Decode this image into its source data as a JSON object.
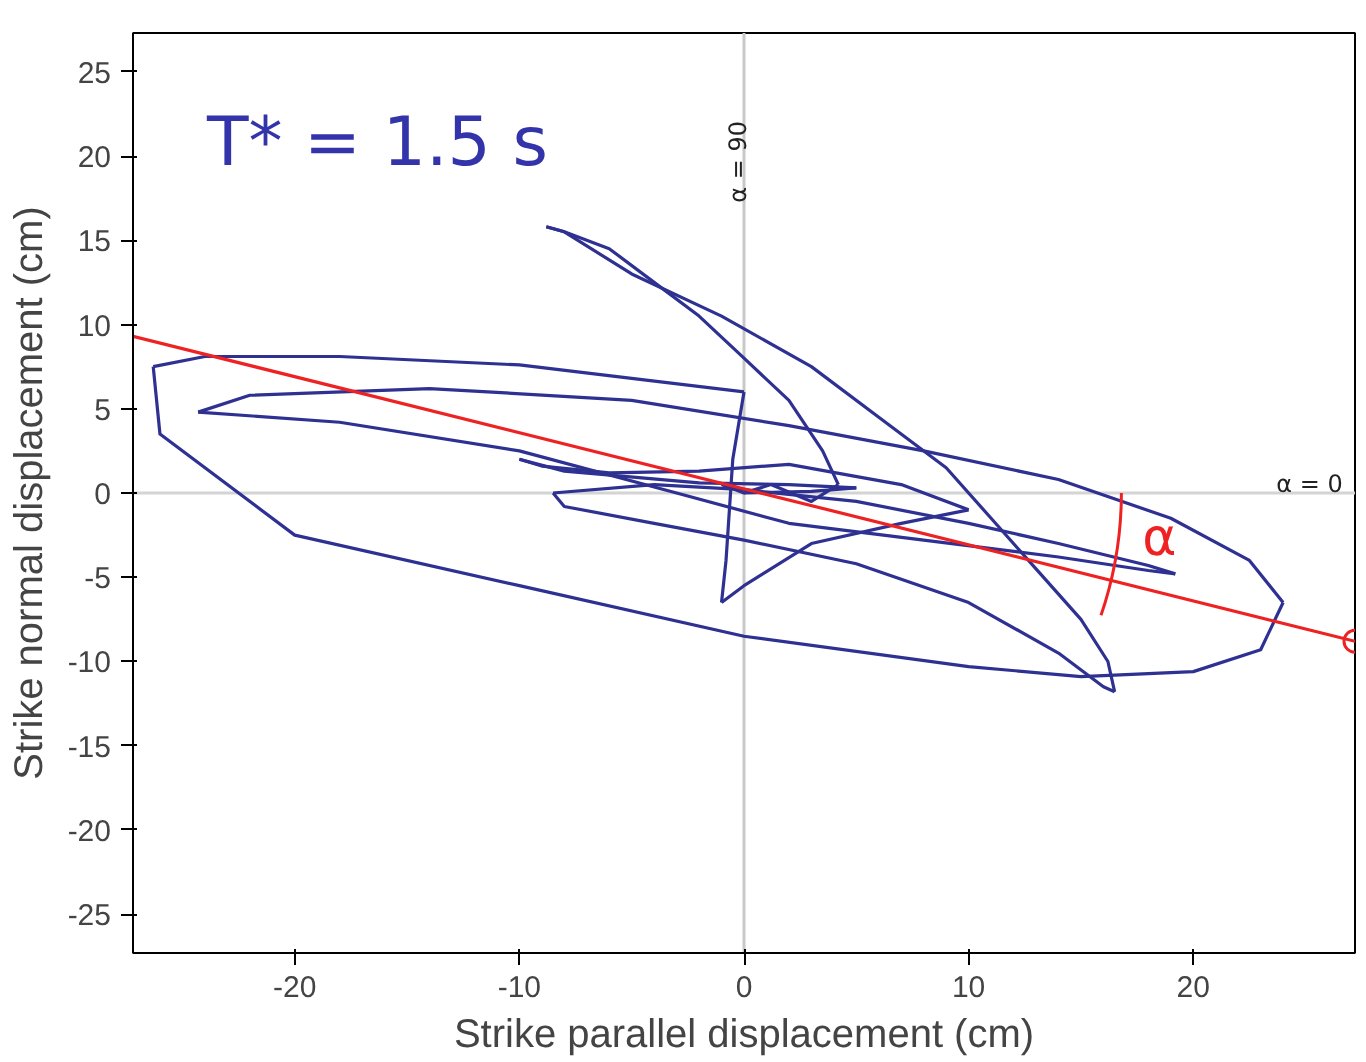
{
  "chart_data": {
    "type": "line",
    "xlabel": "Strike parallel displacement (cm)",
    "ylabel": "Strike normal displacement (cm)",
    "xlim": [
      -27.2,
      27.2
    ],
    "ylim": [
      -27.3,
      27.3
    ],
    "xticks": [
      -20,
      -10,
      0,
      10,
      20
    ],
    "yticks": [
      -25,
      -20,
      -15,
      -10,
      -5,
      0,
      5,
      10,
      15,
      20,
      25
    ],
    "grid": false,
    "annotations": [
      "T* = 1.5 s",
      "α",
      "α = 90",
      "α = 0"
    ],
    "ref_lines": [
      {
        "axis": "x",
        "value": 0,
        "color": "#c8c8c8"
      },
      {
        "axis": "y",
        "value": 0,
        "color": "#d4d4d4"
      }
    ],
    "series": [
      {
        "color": "#2e3192",
        "x": [
          -1,
          0,
          1.2,
          3,
          4.2
        ],
        "values": [
          0.5,
          0,
          0.5,
          -0.5,
          0.5
        ]
      },
      {
        "color": "#2e3192",
        "x": [
          4.2,
          3.5,
          2,
          0,
          -2,
          -4,
          -6,
          -8,
          -8.8
        ],
        "values": [
          0.5,
          2.5,
          5.5,
          8,
          10.5,
          12.5,
          14.5,
          15.5,
          15.8
        ]
      },
      {
        "color": "#2e3192",
        "x": [
          -8.8,
          -8,
          -5,
          -1,
          3,
          6,
          9,
          11,
          13,
          15,
          16.2,
          16.5
        ],
        "values": [
          15.8,
          15.5,
          13,
          10.5,
          7.5,
          4.5,
          1.5,
          -1.5,
          -4.5,
          -7.5,
          -10,
          -11.8
        ]
      },
      {
        "color": "#2e3192",
        "x": [
          16.5,
          16,
          14,
          10,
          5,
          0,
          -4,
          -8,
          -8.5
        ],
        "values": [
          -11.8,
          -11.5,
          -9.5,
          -6.5,
          -4.2,
          -2.8,
          -1.8,
          -0.8,
          0
        ]
      },
      {
        "color": "#2e3192",
        "x": [
          -8.5,
          -4,
          0,
          5,
          10,
          14,
          18,
          19.2
        ],
        "values": [
          0,
          0.5,
          0.2,
          -0.5,
          -1.8,
          -3,
          -4.3,
          -4.8
        ]
      },
      {
        "color": "#2e3192",
        "x": [
          19.2,
          18,
          14,
          8,
          2,
          -3,
          -10,
          -18,
          -24.3
        ],
        "values": [
          -4.8,
          -4.6,
          -3.8,
          -2.8,
          -1.8,
          0,
          2.5,
          4.2,
          4.8
        ]
      },
      {
        "color": "#2e3192",
        "x": [
          -24.3,
          -22,
          -14,
          -5,
          2,
          8,
          14,
          19,
          22.5,
          24
        ],
        "values": [
          4.8,
          5.8,
          6.2,
          5.5,
          4,
          2.5,
          0.8,
          -1.5,
          -4,
          -6.5
        ]
      },
      {
        "color": "#2e3192",
        "x": [
          24,
          23,
          20,
          15,
          10,
          0,
          -10,
          -20,
          -26,
          -26.3
        ],
        "values": [
          -6.5,
          -9.3,
          -10.6,
          -10.9,
          -10.3,
          -8.5,
          -5.5,
          -2.5,
          3.5,
          7.5
        ]
      },
      {
        "color": "#2e3192",
        "x": [
          -26.3,
          -24,
          -18,
          -10,
          0
        ],
        "values": [
          7.5,
          8.1,
          8.1,
          7.6,
          6
        ]
      },
      {
        "color": "#2e3192",
        "x": [
          0,
          -0.5,
          -0.8,
          -1
        ],
        "values": [
          6,
          2,
          -4,
          -6.5
        ]
      },
      {
        "color": "#2e3192",
        "x": [
          -1,
          0,
          3,
          7,
          10
        ],
        "values": [
          -6.5,
          -5.5,
          -3,
          -1.8,
          -1
        ]
      },
      {
        "color": "#2e3192",
        "x": [
          10,
          7,
          2,
          -2,
          -6,
          -9,
          -10
        ],
        "values": [
          -1,
          0.5,
          1.7,
          1.3,
          1.2,
          1.6,
          2
        ]
      },
      {
        "color": "#2e3192",
        "x": [
          -10,
          -8,
          -2,
          2,
          5
        ],
        "values": [
          2,
          1.3,
          0.6,
          0.5,
          0.3
        ]
      },
      {
        "color": "#2e3192",
        "x": [
          5,
          3,
          0
        ],
        "values": [
          0.3,
          0.1,
          0
        ]
      },
      {
        "type": "line",
        "color": "#ee2222",
        "x": [
          -27.2,
          27.2
        ],
        "values": [
          9.3,
          -8.8
        ]
      },
      {
        "type": "scatter",
        "marker": "circle",
        "color": "#ee2222",
        "x": [
          27.2
        ],
        "values": [
          -8.8
        ]
      }
    ]
  }
}
